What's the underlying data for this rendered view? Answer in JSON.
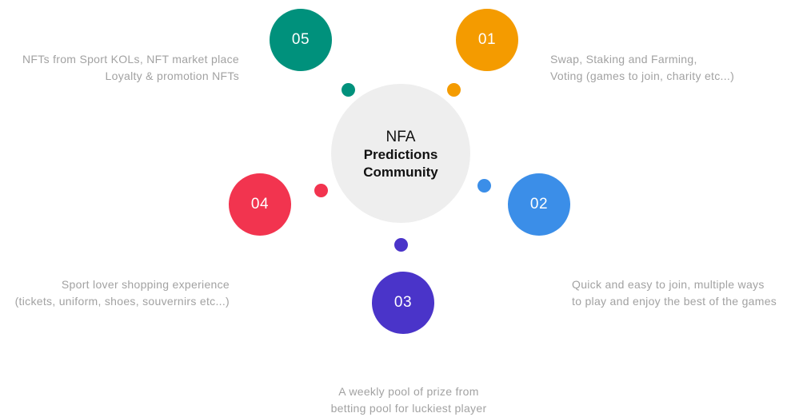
{
  "center": {
    "line1": "NFA",
    "line2": "Predictions",
    "line3": "Community"
  },
  "colors": {
    "center_bg": "#eeeeee",
    "node_01": "#f49b00",
    "node_02": "#3b8ee8",
    "node_03": "#4a34c9",
    "node_04": "#f2344f",
    "node_05": "#00917c",
    "text": "#a2a2a2"
  },
  "nodes": [
    {
      "number": "01",
      "lines": [
        "Swap, Staking and Farming,",
        "Voting (games to join, charity etc...)"
      ]
    },
    {
      "number": "02",
      "lines": [
        "Quick and easy to join, multiple ways",
        "to play and enjoy the best of the games"
      ]
    },
    {
      "number": "03",
      "lines": [
        "A weekly pool of prize from",
        "betting pool for luckiest player"
      ]
    },
    {
      "number": "04",
      "lines": [
        "Sport lover shopping experience",
        "(tickets, uniform, shoes, souvernirs etc...)"
      ]
    },
    {
      "number": "05",
      "lines": [
        "NFTs from Sport KOLs, NFT market place",
        "Loyalty & promotion NFTs"
      ]
    }
  ]
}
